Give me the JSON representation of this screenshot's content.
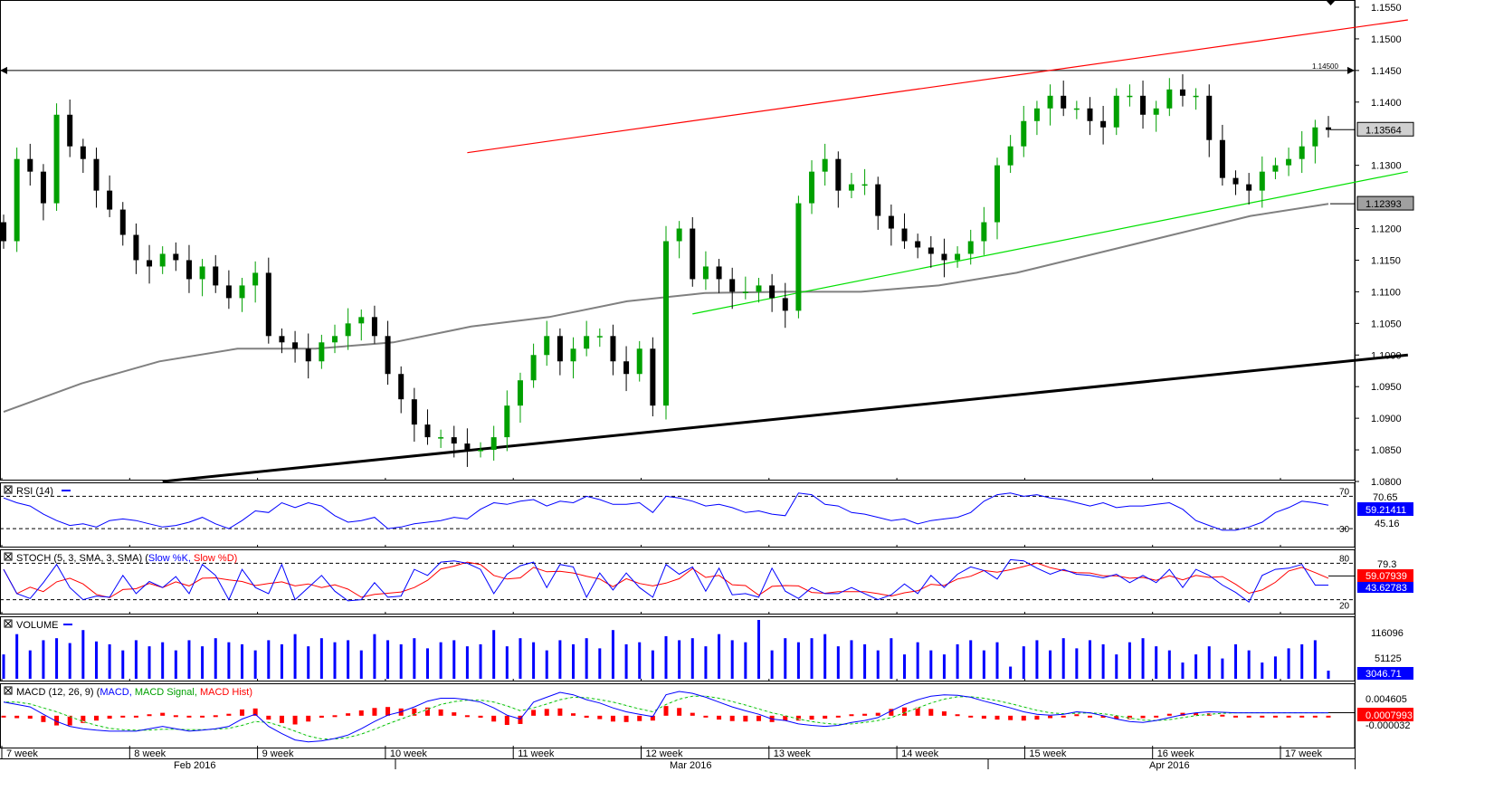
{
  "colors": {
    "up": "#00a000",
    "down": "#000000",
    "ma200": "#808080",
    "channel_upper": "#ff0000",
    "channel_lower": "#00e000",
    "support": "#000000",
    "rsi": "#0000ff",
    "stoch_k": "#0000ff",
    "stoch_d": "#ff0000",
    "volume": "#0000ff",
    "macd": "#0000ff",
    "macd_signal": "#00c000",
    "macd_hist": "#ff0000",
    "current_price_bg": "#ff0000"
  },
  "chart_data": {
    "type": "candlestick",
    "instrument_note": "EUR/USD daily-style candles, weekly gridlines",
    "price_axis": {
      "ylim": [
        1.08,
        1.155
      ],
      "ticks": [
        "1.1550",
        "1.1500",
        "1.1450",
        "1.1400",
        "1.1300",
        "1.1200",
        "1.1150",
        "1.1100",
        "1.1050",
        "1.1000",
        "1.0950",
        "1.0900",
        "1.0850",
        "1.0800"
      ]
    },
    "horizontal_line": {
      "value": 1.145,
      "label": "1.14500"
    },
    "price_labels": [
      {
        "value": 1.13564,
        "label": "1.13564"
      },
      {
        "value": 1.12393,
        "label": "1.12393"
      }
    ],
    "trendlines": {
      "channel_upper": {
        "from": [
          35,
          1.132
        ],
        "to": [
          106,
          1.153
        ]
      },
      "channel_lower": {
        "from": [
          52,
          1.1065
        ],
        "to": [
          106,
          1.129
        ]
      },
      "support": {
        "from": [
          12,
          1.08
        ],
        "to": [
          106,
          1.1
        ]
      }
    },
    "weeks": [
      "7 week",
      "8 week",
      "9 week",
      "10 week",
      "11 week",
      "12 week",
      "13 week",
      "14 week",
      "15 week",
      "16 week",
      "17 week"
    ],
    "months": [
      "Feb 2016",
      "Mar 2016",
      "Apr 2016"
    ],
    "candles_per_week": 10,
    "closes": [
      1.118,
      1.131,
      1.129,
      1.124,
      1.138,
      1.133,
      1.131,
      1.126,
      1.123,
      1.119,
      1.115,
      1.114,
      1.116,
      1.115,
      1.112,
      1.114,
      1.111,
      1.109,
      1.111,
      1.113,
      1.103,
      1.102,
      1.101,
      1.099,
      1.102,
      1.103,
      1.105,
      1.106,
      1.103,
      1.097,
      1.093,
      1.089,
      1.087,
      1.087,
      1.086,
      1.085,
      1.085,
      1.087,
      1.092,
      1.096,
      1.1,
      1.103,
      1.099,
      1.101,
      1.103,
      1.103,
      1.099,
      1.097,
      1.101,
      1.092,
      1.118,
      1.12,
      1.112,
      1.114,
      1.112,
      1.11,
      1.11,
      1.111,
      1.109,
      1.107,
      1.124,
      1.129,
      1.131,
      1.126,
      1.127,
      1.127,
      1.122,
      1.12,
      1.118,
      1.117,
      1.116,
      1.115,
      1.116,
      1.118,
      1.121,
      1.13,
      1.133,
      1.137,
      1.139,
      1.141,
      1.139,
      1.139,
      1.137,
      1.136,
      1.141,
      1.141,
      1.138,
      1.139,
      1.142,
      1.141,
      1.141,
      1.134,
      1.128,
      1.127,
      1.126,
      1.129,
      1.13,
      1.131,
      1.133,
      1.136,
      1.1356
    ],
    "ma200": [
      1.091,
      1.0955,
      1.099,
      1.101,
      1.101,
      1.102,
      1.1045,
      1.106,
      1.1085,
      1.1098,
      1.11,
      1.11,
      1.111,
      1.113,
      1.116,
      1.119,
      1.122,
      1.1239
    ],
    "rsi": {
      "label": "RSI (14)",
      "period": 14,
      "levels": [
        70,
        30
      ],
      "ylim": [
        10,
        85
      ],
      "right_labels": [
        "70.65",
        "59.21411",
        "45.16"
      ],
      "current": 59.21411,
      "values": [
        68,
        62,
        58,
        48,
        40,
        34,
        36,
        32,
        40,
        42,
        40,
        36,
        32,
        34,
        38,
        44,
        36,
        30,
        40,
        52,
        50,
        62,
        56,
        62,
        58,
        46,
        38,
        40,
        44,
        30,
        32,
        36,
        38,
        40,
        44,
        42,
        54,
        62,
        60,
        64,
        66,
        58,
        64,
        62,
        70,
        66,
        60,
        60,
        62,
        50,
        70,
        68,
        64,
        58,
        60,
        56,
        50,
        52,
        48,
        46,
        74,
        72,
        60,
        58,
        50,
        48,
        44,
        40,
        42,
        36,
        40,
        42,
        44,
        50,
        64,
        72,
        74,
        70,
        72,
        68,
        66,
        62,
        58,
        62,
        56,
        58,
        58,
        60,
        62,
        54,
        40,
        34,
        28,
        28,
        32,
        38,
        50,
        56,
        64,
        62,
        59
      ]
    },
    "stoch": {
      "label": "STOCH (5, 3, SMA, 3, SMA)",
      "k_name": "Slow %K",
      "d_name": "Slow %D",
      "levels": [
        80,
        20
      ],
      "ylim": [
        0,
        100
      ],
      "right_labels": [
        "79.3",
        "59.07939",
        "43.62783"
      ],
      "k_current": 43.62783,
      "d_current": 59.07939,
      "k": [
        70,
        30,
        22,
        48,
        78,
        40,
        20,
        26,
        24,
        60,
        30,
        50,
        40,
        58,
        30,
        78,
        60,
        20,
        70,
        40,
        30,
        78,
        20,
        40,
        60,
        34,
        18,
        20,
        48,
        24,
        26,
        70,
        60,
        82,
        84,
        80,
        70,
        30,
        62,
        76,
        82,
        40,
        78,
        74,
        24,
        64,
        36,
        64,
        40,
        24,
        78,
        62,
        74,
        34,
        72,
        28,
        30,
        24,
        72,
        34,
        22,
        40,
        30,
        30,
        40,
        30,
        20,
        28,
        46,
        30,
        60,
        40,
        62,
        74,
        68,
        54,
        86,
        84,
        72,
        62,
        70,
        62,
        60,
        56,
        62,
        48,
        60,
        48,
        70,
        40,
        70,
        60,
        44,
        32,
        16,
        60,
        70,
        72,
        78,
        44,
        44
      ]
    },
    "volume": {
      "label": "VOLUME",
      "right_labels": [
        "116096",
        "51125",
        "3046.71"
      ],
      "ylim": [
        0,
        145000
      ],
      "current": 3046.71,
      "values": [
        60,
        110,
        70,
        95,
        100,
        88,
        120,
        92,
        85,
        70,
        95,
        80,
        90,
        70,
        95,
        80,
        100,
        90,
        85,
        70,
        95,
        85,
        110,
        80,
        100,
        90,
        95,
        70,
        110,
        95,
        85,
        100,
        75,
        90,
        95,
        80,
        85,
        120,
        80,
        100,
        90,
        70,
        95,
        85,
        100,
        75,
        120,
        85,
        90,
        70,
        105,
        95,
        100,
        80,
        110,
        95,
        90,
        145,
        70,
        100,
        90,
        100,
        110,
        80,
        95,
        85,
        70,
        100,
        60,
        90,
        70,
        60,
        85,
        95,
        70,
        90,
        30,
        80,
        95,
        70,
        100,
        75,
        95,
        85,
        60,
        90,
        100,
        80,
        70,
        40,
        60,
        80,
        50,
        85,
        70,
        40,
        55,
        75,
        85,
        95,
        20
      ]
    },
    "macd": {
      "label": "MACD (12, 26, 9)",
      "macd_name": "MACD",
      "signal_name": "MACD Signal",
      "hist_name": "MACD Hist",
      "right_labels": [
        "0.004605",
        "0.0007993",
        "-0.000032"
      ],
      "current": 0.0007993,
      "ylim": [
        -0.006,
        0.0065
      ],
      "macd": [
        0.003,
        0.0025,
        0.002,
        0.0005,
        -0.001,
        -0.002,
        -0.0025,
        -0.0028,
        -0.003,
        -0.003,
        -0.003,
        -0.0025,
        -0.002,
        -0.0025,
        -0.003,
        -0.0028,
        -0.0025,
        -0.002,
        -0.0005,
        0.0005,
        -0.002,
        -0.0035,
        -0.0048,
        -0.0052,
        -0.005,
        -0.0045,
        -0.0038,
        -0.0025,
        -0.001,
        0.0003,
        0.001,
        0.002,
        0.0032,
        0.0038,
        0.0038,
        0.0035,
        0.003,
        0.0018,
        0.0003,
        -0.0005,
        0.003,
        0.004,
        0.005,
        0.0045,
        0.0035,
        0.0028,
        0.0018,
        0.001,
        0.0005,
        0.0,
        0.0045,
        0.0052,
        0.0048,
        0.004,
        0.003,
        0.002,
        0.0012,
        0.0005,
        -0.0005,
        -0.0008,
        -0.0015,
        -0.0018,
        -0.002,
        -0.0018,
        -0.0012,
        -0.0008,
        -0.0002,
        0.0012,
        0.0025,
        0.0035,
        0.0042,
        0.0045,
        0.0044,
        0.004,
        0.0032,
        0.0025,
        0.0018,
        0.001,
        0.0005,
        0.0003,
        0.0005,
        0.001,
        0.0008,
        0.0002,
        -0.0005,
        -0.001,
        -0.0012,
        -0.0008,
        -0.0002,
        0.0004,
        0.0008,
        0.001,
        0.0009,
        0.0008,
        0.0008,
        0.0008,
        0.0008,
        0.0008,
        0.0008,
        0.0008,
        0.0008
      ],
      "signal": [
        0.003,
        0.003,
        0.0026,
        0.0018,
        0.001,
        0.0,
        -0.001,
        -0.0018,
        -0.0024,
        -0.0027,
        -0.0028,
        -0.0028,
        -0.0026,
        -0.0026,
        -0.0027,
        -0.0027,
        -0.0026,
        -0.0024,
        -0.0018,
        -0.001,
        -0.0012,
        -0.002,
        -0.003,
        -0.004,
        -0.0046,
        -0.0046,
        -0.0043,
        -0.0036,
        -0.0026,
        -0.0015,
        -0.0005,
        0.0005,
        0.0015,
        0.0025,
        0.0031,
        0.0034,
        0.0034,
        0.003,
        0.0022,
        0.0012,
        0.0018,
        0.0026,
        0.0035,
        0.004,
        0.0039,
        0.0035,
        0.003,
        0.0023,
        0.0016,
        0.001,
        0.0025,
        0.0036,
        0.0042,
        0.0042,
        0.0038,
        0.0031,
        0.0024,
        0.0016,
        0.0008,
        0.0002,
        -0.0005,
        -0.001,
        -0.0014,
        -0.0016,
        -0.0015,
        -0.0012,
        -0.0008,
        -0.0002,
        0.0008,
        0.0018,
        0.0028,
        0.0036,
        0.0041,
        0.0041,
        0.0038,
        0.0033,
        0.0027,
        0.002,
        0.0013,
        0.0008,
        0.0006,
        0.0007,
        0.0008,
        0.0006,
        0.0002,
        -0.0003,
        -0.0007,
        -0.0008,
        -0.0006,
        -0.0002,
        0.0002,
        0.0005,
        0.0007,
        0.0008,
        0.0008,
        0.0008,
        0.0008,
        0.0008,
        0.0008,
        0.0008,
        0.0008
      ]
    }
  }
}
